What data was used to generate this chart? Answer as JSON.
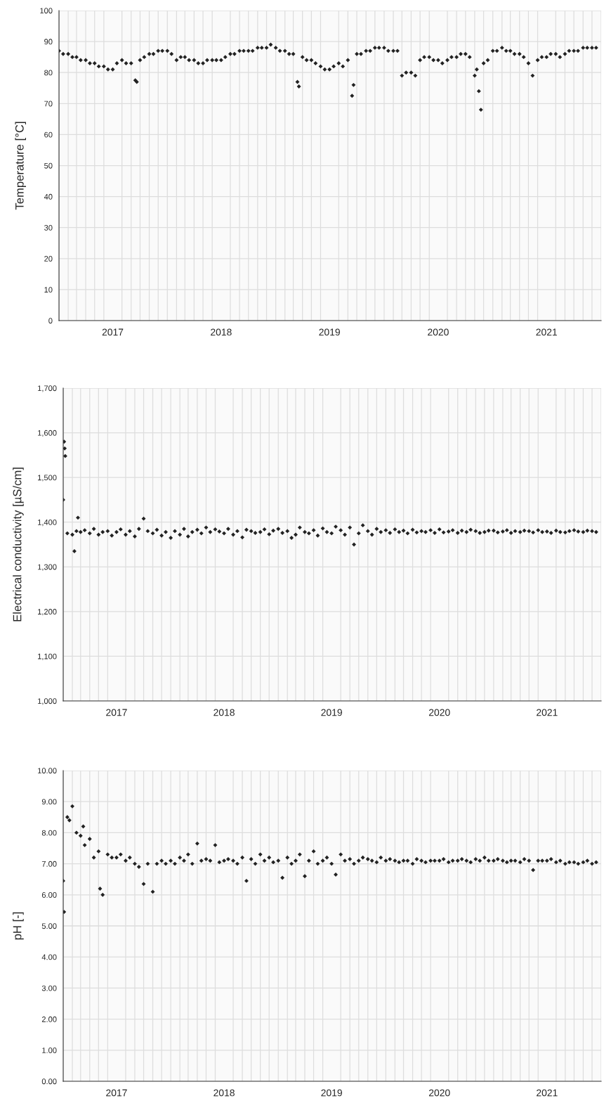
{
  "chart_data": [
    {
      "type": "scatter",
      "ylabel": "Temperature [°C]",
      "marker": "diamond",
      "grid": true,
      "xlim": [
        "2017-01-01",
        "2022-01-01"
      ],
      "ylim": [
        0,
        100
      ],
      "yticks": [
        0,
        10,
        20,
        30,
        40,
        50,
        60,
        70,
        80,
        90,
        100
      ],
      "xticks": [
        {
          "value": "2017-07-01",
          "label": "2017"
        },
        {
          "value": "2018-07-01",
          "label": "2018"
        },
        {
          "value": "2019-07-01",
          "label": "2019"
        },
        {
          "value": "2020-07-01",
          "label": "2020"
        },
        {
          "value": "2021-07-01",
          "label": "2021"
        }
      ],
      "series": [
        {
          "color": "#222222",
          "x": [
            "2017-01-01",
            "2017-01-15",
            "2017-02-01",
            "2017-02-15",
            "2017-03-01",
            "2017-03-15",
            "2017-04-01",
            "2017-04-15",
            "2017-05-01",
            "2017-05-15",
            "2017-06-01",
            "2017-06-15",
            "2017-07-01",
            "2017-07-15",
            "2017-08-01",
            "2017-08-15",
            "2017-09-01",
            "2017-09-15",
            "2017-10-01",
            "2017-10-15",
            "2017-11-01",
            "2017-11-15",
            "2017-12-01",
            "2017-12-15",
            "2018-01-01",
            "2018-01-15",
            "2018-02-01",
            "2018-02-15",
            "2018-03-01",
            "2018-03-15",
            "2018-04-01",
            "2018-04-15",
            "2018-05-01",
            "2018-05-15",
            "2018-06-01",
            "2018-06-15",
            "2018-07-01",
            "2018-07-15",
            "2018-08-01",
            "2018-08-15",
            "2018-09-01",
            "2018-09-15",
            "2018-10-01",
            "2018-10-15",
            "2018-11-01",
            "2018-11-15",
            "2018-12-01",
            "2018-12-15",
            "2019-01-01",
            "2019-01-15",
            "2019-02-01",
            "2019-02-15",
            "2019-03-01",
            "2019-03-15",
            "2019-04-01",
            "2019-04-15",
            "2019-05-01",
            "2019-05-15",
            "2019-06-01",
            "2019-06-15",
            "2019-07-01",
            "2019-07-15",
            "2019-08-01",
            "2019-08-15",
            "2019-09-01",
            "2019-09-15",
            "2019-10-01",
            "2019-10-15",
            "2019-11-01",
            "2019-11-15",
            "2019-12-01",
            "2019-12-15",
            "2020-01-01",
            "2020-01-15",
            "2020-02-01",
            "2020-02-15",
            "2020-03-01",
            "2020-03-15",
            "2020-04-01",
            "2020-04-15",
            "2020-05-01",
            "2020-05-15",
            "2020-06-01",
            "2020-06-15",
            "2020-07-01",
            "2020-07-15",
            "2020-08-01",
            "2020-08-15",
            "2020-09-01",
            "2020-09-15",
            "2020-10-01",
            "2020-10-15",
            "2020-11-01",
            "2020-11-15",
            "2020-12-01",
            "2020-12-15",
            "2021-01-01",
            "2021-01-15",
            "2021-02-01",
            "2021-02-15",
            "2021-03-01",
            "2021-03-15",
            "2021-04-01",
            "2021-04-15",
            "2021-05-01",
            "2021-05-15",
            "2021-06-01",
            "2021-06-15",
            "2021-07-01",
            "2021-07-15",
            "2021-08-01",
            "2021-08-15",
            "2021-09-01",
            "2021-09-15",
            "2021-10-01",
            "2021-10-15",
            "2021-11-01",
            "2021-11-15",
            "2021-12-01",
            "2021-12-15",
            "2017-09-20",
            "2019-03-20",
            "2019-09-20",
            "2020-11-08",
            "2020-11-22"
          ],
          "values": [
            87,
            86,
            86,
            85,
            85,
            84,
            84,
            83,
            83,
            82,
            82,
            81,
            81,
            83,
            84,
            83,
            83,
            77.5,
            84,
            85,
            86,
            86,
            87,
            87,
            87,
            86,
            84,
            85,
            85,
            84,
            84,
            83,
            83,
            84,
            84,
            84,
            84,
            85,
            86,
            86,
            87,
            87,
            87,
            87,
            88,
            88,
            88,
            89,
            88,
            87,
            87,
            86,
            86,
            77,
            85,
            84,
            84,
            83,
            82,
            81,
            81,
            82,
            83,
            82,
            84,
            72.5,
            86,
            86,
            87,
            87,
            88,
            88,
            88,
            87,
            87,
            87,
            79,
            80,
            80,
            79,
            84,
            85,
            85,
            84,
            84,
            83,
            84,
            85,
            85,
            86,
            86,
            85,
            79,
            74,
            83,
            84,
            87,
            87,
            88,
            87,
            87,
            86,
            86,
            85,
            83,
            79,
            84,
            85,
            85,
            86,
            86,
            85,
            86,
            87,
            87,
            87,
            88,
            88,
            88,
            88,
            77,
            75.5,
            76,
            81,
            68
          ]
        }
      ]
    },
    {
      "type": "scatter",
      "ylabel": "Electrical conductivity [µS/cm]",
      "marker": "diamond",
      "grid": true,
      "xlim": [
        "2017-01-01",
        "2022-01-01"
      ],
      "ylim": [
        1000,
        1700
      ],
      "yticks": [
        {
          "value": 1000,
          "label": "1,000"
        },
        {
          "value": 1100,
          "label": "1,100"
        },
        {
          "value": 1200,
          "label": "1,200"
        },
        {
          "value": 1300,
          "label": "1,300"
        },
        {
          "value": 1400,
          "label": "1,400"
        },
        {
          "value": 1500,
          "label": "1,500"
        },
        {
          "value": 1600,
          "label": "1,600"
        },
        {
          "value": 1700,
          "label": "1,700"
        }
      ],
      "xticks": [
        {
          "value": "2017-07-01",
          "label": "2017"
        },
        {
          "value": "2018-07-01",
          "label": "2018"
        },
        {
          "value": "2019-07-01",
          "label": "2019"
        },
        {
          "value": "2020-07-01",
          "label": "2020"
        },
        {
          "value": "2021-07-01",
          "label": "2021"
        }
      ],
      "series": [
        {
          "color": "#222222",
          "x": [
            "2017-01-01",
            "2017-01-15",
            "2017-02-01",
            "2017-02-15",
            "2017-03-01",
            "2017-03-15",
            "2017-04-01",
            "2017-04-15",
            "2017-05-01",
            "2017-05-15",
            "2017-06-01",
            "2017-06-15",
            "2017-07-01",
            "2017-07-15",
            "2017-08-01",
            "2017-08-15",
            "2017-09-01",
            "2017-09-15",
            "2017-10-01",
            "2017-10-15",
            "2017-11-01",
            "2017-11-15",
            "2017-12-01",
            "2017-12-15",
            "2018-01-01",
            "2018-01-15",
            "2018-02-01",
            "2018-02-15",
            "2018-03-01",
            "2018-03-15",
            "2018-04-01",
            "2018-04-15",
            "2018-05-01",
            "2018-05-15",
            "2018-06-01",
            "2018-06-15",
            "2018-07-01",
            "2018-07-15",
            "2018-08-01",
            "2018-08-15",
            "2018-09-01",
            "2018-09-15",
            "2018-10-01",
            "2018-10-15",
            "2018-11-01",
            "2018-11-15",
            "2018-12-01",
            "2018-12-15",
            "2019-01-01",
            "2019-01-15",
            "2019-02-01",
            "2019-02-15",
            "2019-03-01",
            "2019-03-15",
            "2019-04-01",
            "2019-04-15",
            "2019-05-01",
            "2019-05-15",
            "2019-06-01",
            "2019-06-15",
            "2019-07-01",
            "2019-07-15",
            "2019-08-01",
            "2019-08-15",
            "2019-09-01",
            "2019-09-15",
            "2019-10-01",
            "2019-10-15",
            "2019-11-01",
            "2019-11-15",
            "2019-12-01",
            "2019-12-15",
            "2020-01-01",
            "2020-01-15",
            "2020-02-01",
            "2020-02-15",
            "2020-03-01",
            "2020-03-15",
            "2020-04-01",
            "2020-04-15",
            "2020-05-01",
            "2020-05-15",
            "2020-06-01",
            "2020-06-15",
            "2020-07-01",
            "2020-07-15",
            "2020-08-01",
            "2020-08-15",
            "2020-09-01",
            "2020-09-15",
            "2020-10-01",
            "2020-10-15",
            "2020-11-01",
            "2020-11-15",
            "2020-12-01",
            "2020-12-15",
            "2021-01-01",
            "2021-01-15",
            "2021-02-01",
            "2021-02-15",
            "2021-03-01",
            "2021-03-15",
            "2021-04-01",
            "2021-04-15",
            "2021-05-01",
            "2021-05-15",
            "2021-06-01",
            "2021-06-15",
            "2021-07-01",
            "2021-07-15",
            "2021-08-01",
            "2021-08-15",
            "2021-09-01",
            "2021-09-15",
            "2021-10-01",
            "2021-10-15",
            "2021-11-01",
            "2021-11-15",
            "2021-12-01",
            "2021-12-15",
            "2017-01-04",
            "2017-01-06",
            "2017-01-08",
            "2017-02-20",
            "2017-02-08"
          ],
          "values": [
            1450,
            1375,
            1372,
            1380,
            1378,
            1382,
            1375,
            1385,
            1372,
            1378,
            1380,
            1370,
            1378,
            1384,
            1372,
            1380,
            1368,
            1385,
            1408,
            1380,
            1375,
            1383,
            1370,
            1378,
            1365,
            1380,
            1372,
            1385,
            1368,
            1378,
            1383,
            1375,
            1388,
            1378,
            1384,
            1379,
            1375,
            1385,
            1372,
            1380,
            1366,
            1383,
            1380,
            1376,
            1378,
            1384,
            1373,
            1381,
            1385,
            1376,
            1380,
            1365,
            1372,
            1388,
            1378,
            1375,
            1382,
            1370,
            1386,
            1378,
            1375,
            1390,
            1382,
            1372,
            1388,
            1350,
            1375,
            1393,
            1380,
            1372,
            1385,
            1378,
            1382,
            1376,
            1384,
            1378,
            1381,
            1375,
            1383,
            1377,
            1380,
            1378,
            1382,
            1376,
            1384,
            1377,
            1379,
            1382,
            1376,
            1381,
            1378,
            1383,
            1380,
            1376,
            1378,
            1381,
            1381,
            1377,
            1379,
            1382,
            1376,
            1380,
            1378,
            1381,
            1380,
            1377,
            1382,
            1378,
            1379,
            1376,
            1381,
            1378,
            1377,
            1380,
            1382,
            1379,
            1378,
            1381,
            1380,
            1378,
            1580,
            1565,
            1548,
            1410,
            1335
          ]
        }
      ]
    },
    {
      "type": "scatter",
      "ylabel": "pH [-]",
      "marker": "diamond",
      "grid": true,
      "xlim": [
        "2017-01-01",
        "2022-01-01"
      ],
      "ylim": [
        0,
        10
      ],
      "yticks": [
        {
          "value": 0,
          "label": "0.00"
        },
        {
          "value": 1,
          "label": "1.00"
        },
        {
          "value": 2,
          "label": "2.00"
        },
        {
          "value": 3,
          "label": "3.00"
        },
        {
          "value": 4,
          "label": "4.00"
        },
        {
          "value": 5,
          "label": "5.00"
        },
        {
          "value": 6,
          "label": "6.00"
        },
        {
          "value": 7,
          "label": "7.00"
        },
        {
          "value": 8,
          "label": "8.00"
        },
        {
          "value": 9,
          "label": "9.00"
        },
        {
          "value": 10,
          "label": "10.00"
        }
      ],
      "xticks": [
        {
          "value": "2017-07-01",
          "label": "2017"
        },
        {
          "value": "2018-07-01",
          "label": "2018"
        },
        {
          "value": "2019-07-01",
          "label": "2019"
        },
        {
          "value": "2020-07-01",
          "label": "2020"
        },
        {
          "value": "2021-07-01",
          "label": "2021"
        }
      ],
      "series": [
        {
          "color": "#222222",
          "x": [
            "2017-01-01",
            "2017-01-15",
            "2017-02-01",
            "2017-02-15",
            "2017-03-01",
            "2017-03-15",
            "2017-04-01",
            "2017-04-15",
            "2017-05-01",
            "2017-05-15",
            "2017-06-01",
            "2017-06-15",
            "2017-07-01",
            "2017-07-15",
            "2017-08-01",
            "2017-08-15",
            "2017-09-01",
            "2017-09-15",
            "2017-10-01",
            "2017-10-15",
            "2017-11-01",
            "2017-11-15",
            "2017-12-01",
            "2017-12-15",
            "2018-01-01",
            "2018-01-15",
            "2018-02-01",
            "2018-02-15",
            "2018-03-01",
            "2018-03-15",
            "2018-04-01",
            "2018-04-15",
            "2018-05-01",
            "2018-05-15",
            "2018-06-01",
            "2018-06-15",
            "2018-07-01",
            "2018-07-15",
            "2018-08-01",
            "2018-08-15",
            "2018-09-01",
            "2018-09-15",
            "2018-10-01",
            "2018-10-15",
            "2018-11-01",
            "2018-11-15",
            "2018-12-01",
            "2018-12-15",
            "2019-01-01",
            "2019-01-15",
            "2019-02-01",
            "2019-02-15",
            "2019-03-01",
            "2019-03-15",
            "2019-04-01",
            "2019-04-15",
            "2019-05-01",
            "2019-05-15",
            "2019-06-01",
            "2019-06-15",
            "2019-07-01",
            "2019-07-15",
            "2019-08-01",
            "2019-08-15",
            "2019-09-01",
            "2019-09-15",
            "2019-10-01",
            "2019-10-15",
            "2019-11-01",
            "2019-11-15",
            "2019-12-01",
            "2019-12-15",
            "2020-01-01",
            "2020-01-15",
            "2020-02-01",
            "2020-02-15",
            "2020-03-01",
            "2020-03-15",
            "2020-04-01",
            "2020-04-15",
            "2020-05-01",
            "2020-05-15",
            "2020-06-01",
            "2020-06-15",
            "2020-07-01",
            "2020-07-15",
            "2020-08-01",
            "2020-08-15",
            "2020-09-01",
            "2020-09-15",
            "2020-10-01",
            "2020-10-15",
            "2020-11-01",
            "2020-11-15",
            "2020-12-01",
            "2020-12-15",
            "2021-01-01",
            "2021-01-15",
            "2021-02-01",
            "2021-02-15",
            "2021-03-01",
            "2021-03-15",
            "2021-04-01",
            "2021-04-15",
            "2021-05-01",
            "2021-05-15",
            "2021-06-01",
            "2021-06-15",
            "2021-07-01",
            "2021-07-15",
            "2021-08-01",
            "2021-08-15",
            "2021-09-01",
            "2021-09-15",
            "2021-10-01",
            "2021-10-15",
            "2021-11-01",
            "2021-11-15",
            "2021-12-01",
            "2021-12-15",
            "2017-01-04",
            "2017-01-22",
            "2017-03-10",
            "2017-05-06"
          ],
          "values": [
            6.45,
            8.5,
            8.85,
            8.0,
            7.9,
            7.6,
            7.8,
            7.2,
            7.4,
            6.0,
            7.3,
            7.2,
            7.2,
            7.3,
            7.1,
            7.2,
            7.0,
            6.9,
            6.35,
            7.0,
            6.1,
            7.0,
            7.1,
            7.0,
            7.1,
            7.0,
            7.2,
            7.1,
            7.3,
            7.0,
            7.65,
            7.1,
            7.15,
            7.1,
            7.6,
            7.05,
            7.1,
            7.15,
            7.1,
            7.0,
            7.2,
            6.45,
            7.15,
            7.0,
            7.3,
            7.1,
            7.2,
            7.05,
            7.1,
            6.55,
            7.2,
            7.0,
            7.1,
            7.3,
            6.6,
            7.1,
            7.4,
            7.0,
            7.1,
            7.2,
            7.0,
            6.65,
            7.3,
            7.1,
            7.15,
            7.0,
            7.1,
            7.2,
            7.15,
            7.1,
            7.05,
            7.2,
            7.1,
            7.15,
            7.1,
            7.05,
            7.1,
            7.1,
            7.0,
            7.15,
            7.1,
            7.05,
            7.1,
            7.1,
            7.1,
            7.15,
            7.05,
            7.1,
            7.1,
            7.15,
            7.1,
            7.05,
            7.15,
            7.1,
            7.2,
            7.1,
            7.1,
            7.15,
            7.1,
            7.05,
            7.1,
            7.1,
            7.05,
            7.15,
            7.1,
            6.8,
            7.1,
            7.1,
            7.1,
            7.15,
            7.05,
            7.1,
            7.0,
            7.05,
            7.05,
            7.0,
            7.05,
            7.1,
            7.0,
            7.05,
            5.45,
            8.4,
            8.2,
            6.2
          ]
        }
      ]
    }
  ]
}
